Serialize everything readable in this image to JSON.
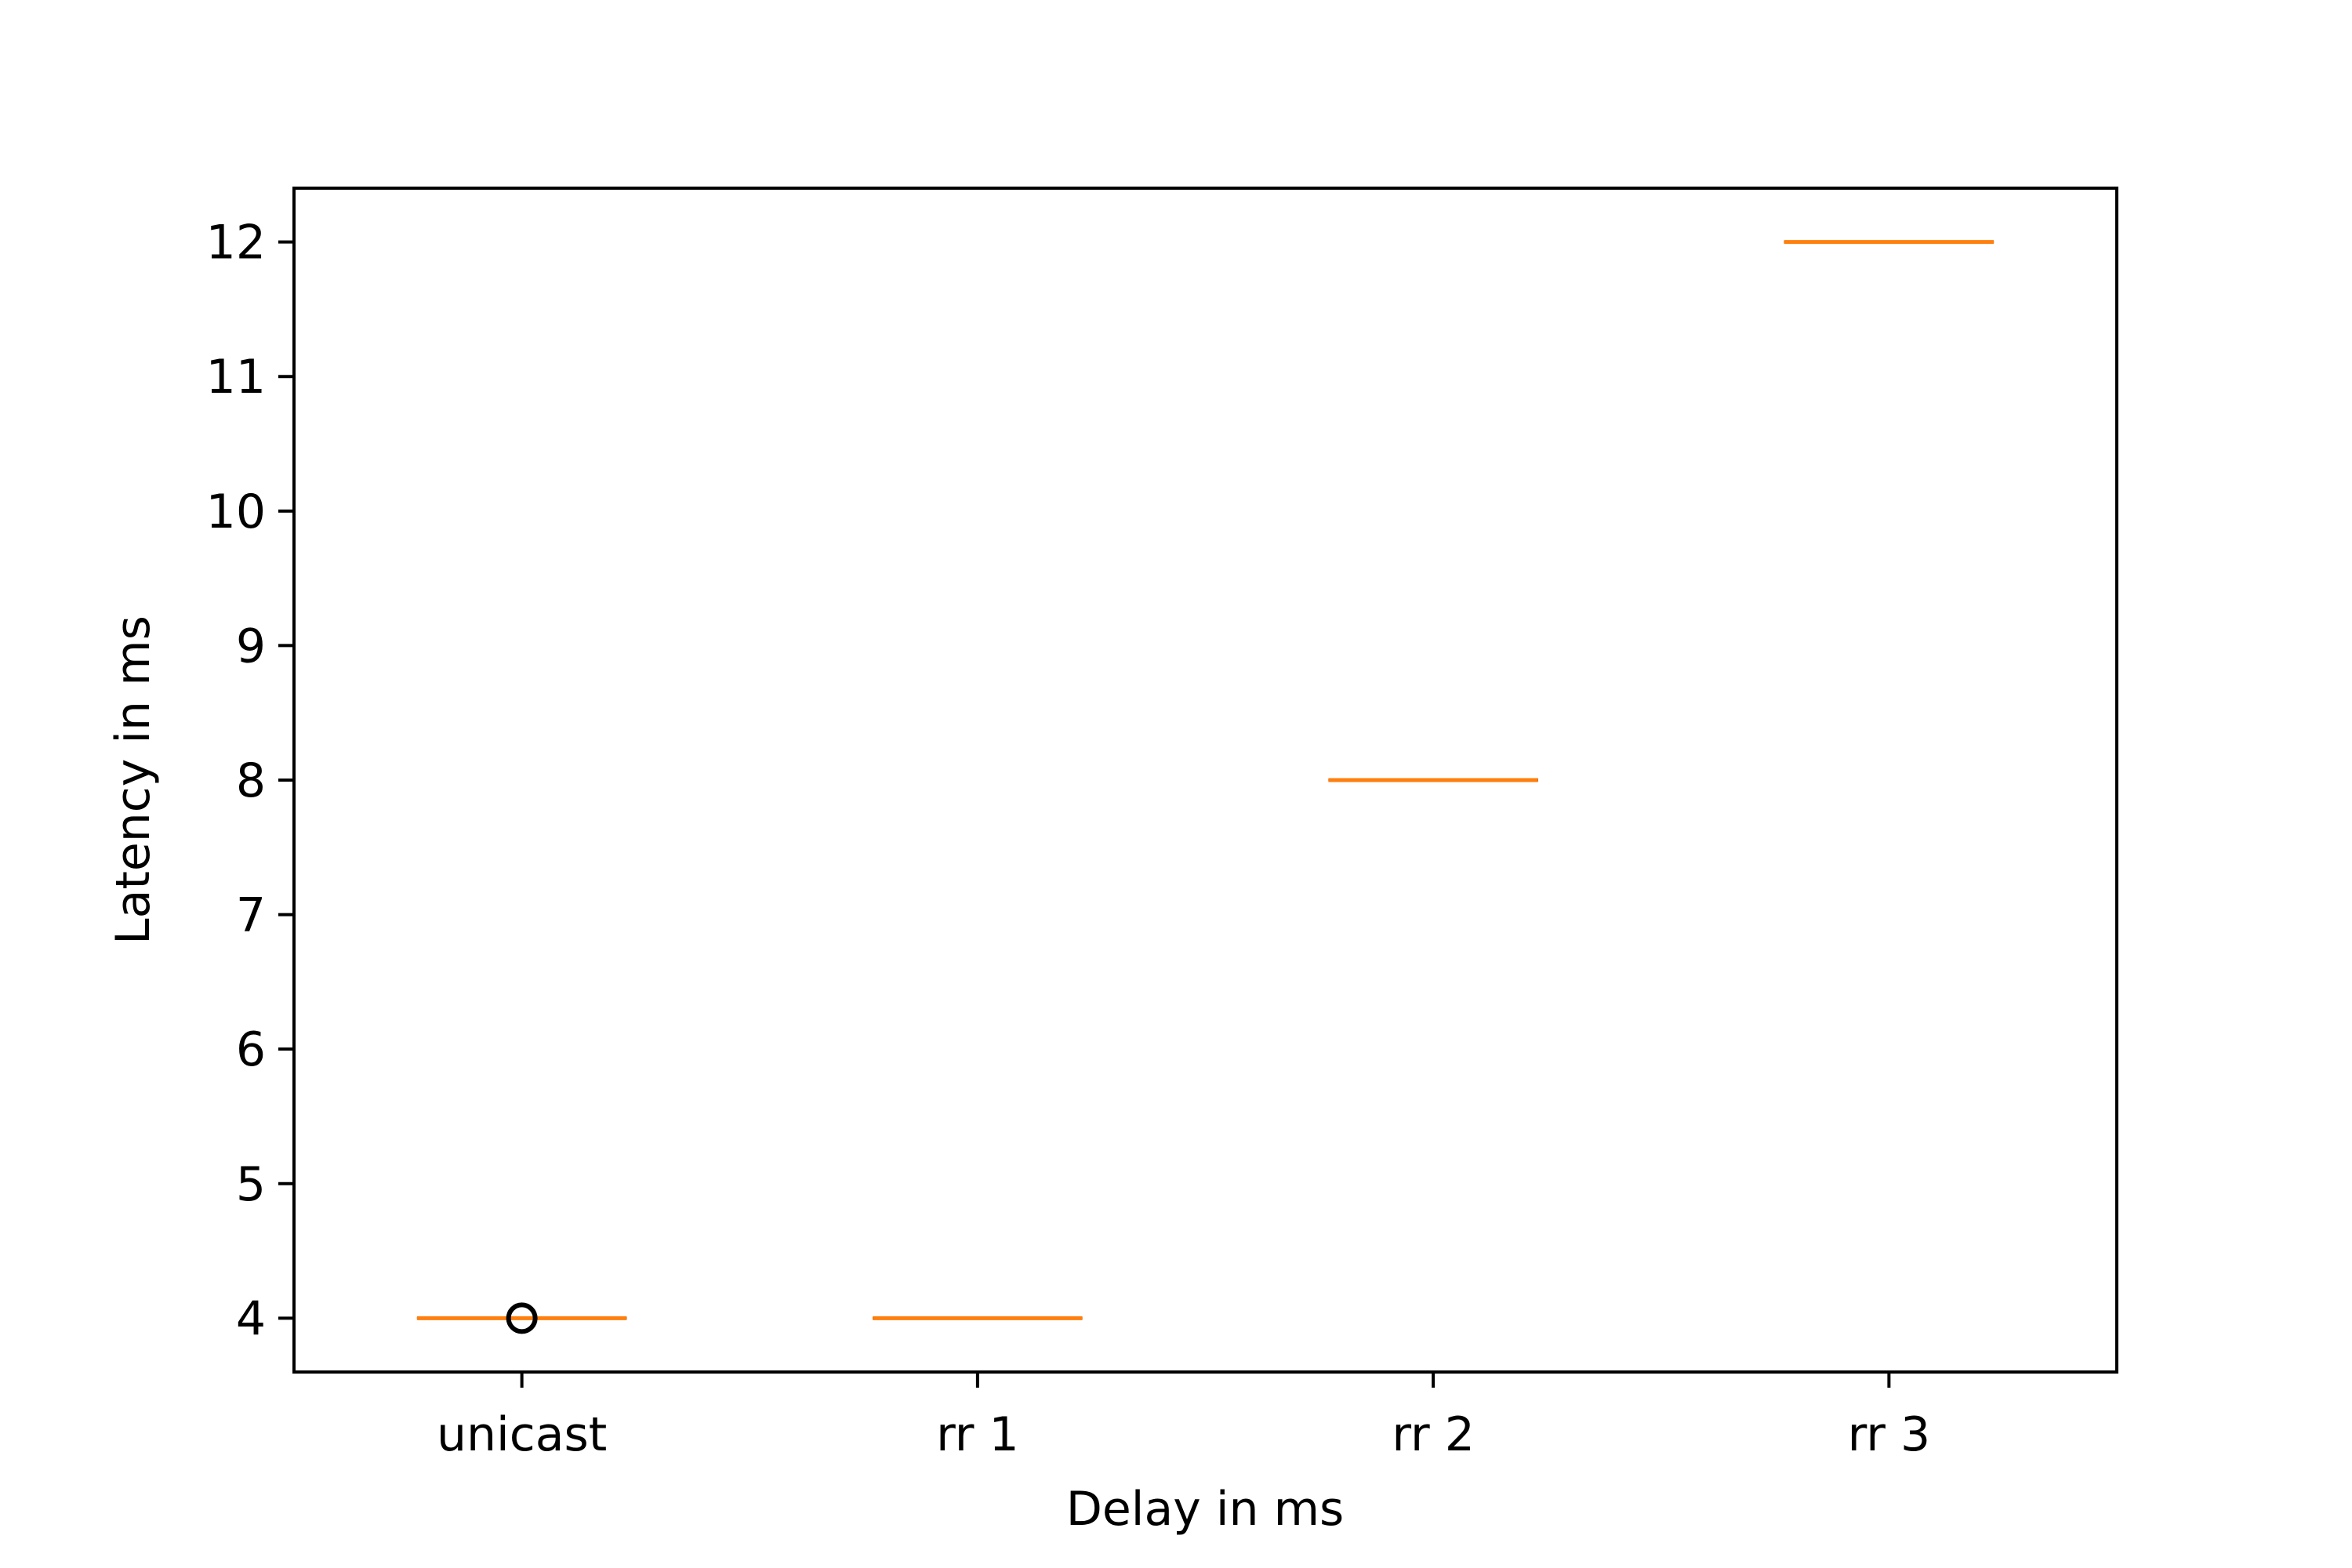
{
  "chart_data": {
    "type": "box",
    "title": "",
    "xlabel": "Delay in ms",
    "ylabel": "Latency in ms",
    "categories": [
      "unicast",
      "rr 1",
      "rr 2",
      "rr 3"
    ],
    "series": [
      {
        "values": [
          {
            "category": "unicast",
            "median": 4,
            "q1": 4,
            "q3": 4,
            "whisker_low": 4,
            "whisker_high": 4,
            "outliers": [
              4
            ]
          },
          {
            "category": "rr 1",
            "median": 4,
            "q1": 4,
            "q3": 4,
            "whisker_low": 4,
            "whisker_high": 4,
            "outliers": []
          },
          {
            "category": "rr 2",
            "median": 8,
            "q1": 8,
            "q3": 8,
            "whisker_low": 8,
            "whisker_high": 8,
            "outliers": []
          },
          {
            "category": "rr 3",
            "median": 12,
            "q1": 12,
            "q3": 12,
            "whisker_low": 12,
            "whisker_high": 12,
            "outliers": []
          }
        ]
      }
    ],
    "ylim": [
      3.6,
      12.4
    ],
    "yticks": [
      4,
      5,
      6,
      7,
      8,
      9,
      10,
      11,
      12
    ],
    "grid": false,
    "legend": "none",
    "colors": {
      "median": "#ff7f0e",
      "outlier": "#000000",
      "axes": "#000000"
    }
  }
}
